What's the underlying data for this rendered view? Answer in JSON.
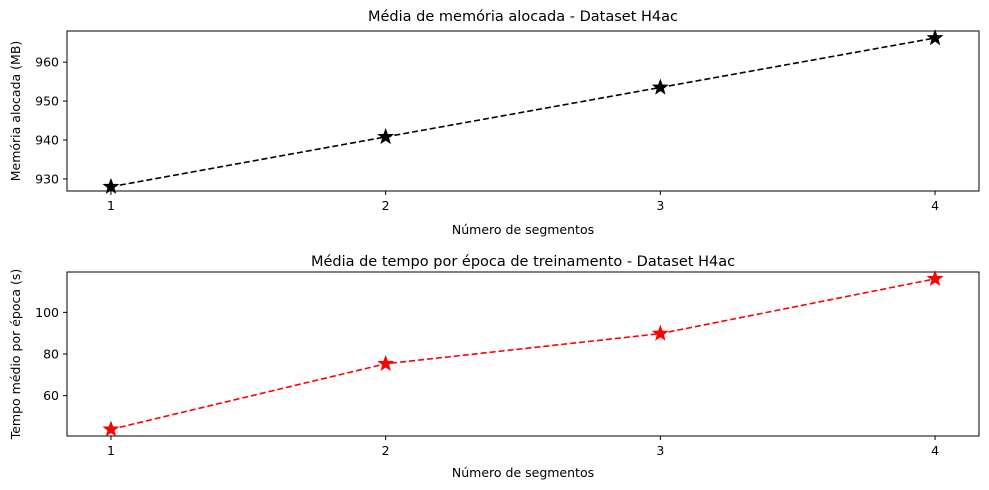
{
  "chart_data": [
    {
      "type": "line",
      "title": "Média de memória alocada - Dataset H4ac",
      "xlabel": "Número de segmentos",
      "ylabel": "Memória alocada (MB)",
      "x": [
        1,
        2,
        3,
        4
      ],
      "xticks": [
        "1",
        "2",
        "3",
        "4"
      ],
      "xlim": [
        0.84,
        4.16
      ],
      "ylim": [
        926.9,
        968.0
      ],
      "yticks": [
        930,
        940,
        950,
        960
      ],
      "ytick_labels": [
        "930",
        "940",
        "950",
        "960"
      ],
      "series": [
        {
          "values": [
            928.0,
            940.8,
            953.5,
            966.2
          ],
          "color": "#000000",
          "linestyle": "dashed",
          "marker": "star"
        }
      ],
      "grid": false,
      "legend": "none"
    },
    {
      "type": "line",
      "title": "Média de tempo por época de treinamento - Dataset H4ac",
      "xlabel": "Número de segmentos",
      "ylabel": "Tempo médio por época (s)",
      "x": [
        1,
        2,
        3,
        4
      ],
      "xticks": [
        "1",
        "2",
        "3",
        "4"
      ],
      "xlim": [
        0.84,
        4.16
      ],
      "ylim": [
        40.6,
        119.4
      ],
      "yticks": [
        60,
        80,
        100
      ],
      "ytick_labels": [
        "60",
        "80",
        "100"
      ],
      "series": [
        {
          "values": [
            43.8,
            75.3,
            89.8,
            116.1
          ],
          "color": "#ff0000",
          "linestyle": "dashed",
          "marker": "star"
        }
      ],
      "grid": false,
      "legend": "none"
    }
  ]
}
